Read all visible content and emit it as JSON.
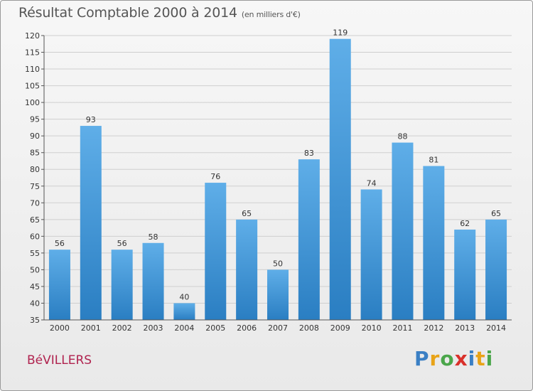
{
  "title": "Résultat Comptable 2000 à 2014",
  "subtitle": "(en milliers d'€)",
  "commune": "BéVILLERS",
  "logo": {
    "letters": [
      "P",
      "r",
      "o",
      "x",
      "i",
      "t",
      "i"
    ],
    "colors": [
      "#3a7fc4",
      "#e8a317",
      "#4aa64a",
      "#d9312b",
      "#3a7fc4",
      "#e8a317",
      "#4aa64a"
    ]
  },
  "colors": {
    "bar_top": "#5faee8",
    "bar_bottom": "#2a7ec2",
    "grid": "#cfcfcf"
  },
  "chart_data": {
    "type": "bar",
    "title": "Résultat Comptable 2000 à 2014",
    "xlabel": "",
    "ylabel": "",
    "categories": [
      "2000",
      "2001",
      "2002",
      "2003",
      "2004",
      "2005",
      "2006",
      "2007",
      "2008",
      "2009",
      "2010",
      "2011",
      "2012",
      "2013",
      "2014"
    ],
    "values": [
      56,
      93,
      56,
      58,
      40,
      76,
      65,
      50,
      83,
      119,
      74,
      88,
      81,
      62,
      65
    ],
    "ylim": [
      35,
      120
    ],
    "yticks": [
      35,
      40,
      45,
      50,
      55,
      60,
      65,
      70,
      75,
      80,
      85,
      90,
      95,
      100,
      105,
      110,
      115,
      120
    ]
  }
}
